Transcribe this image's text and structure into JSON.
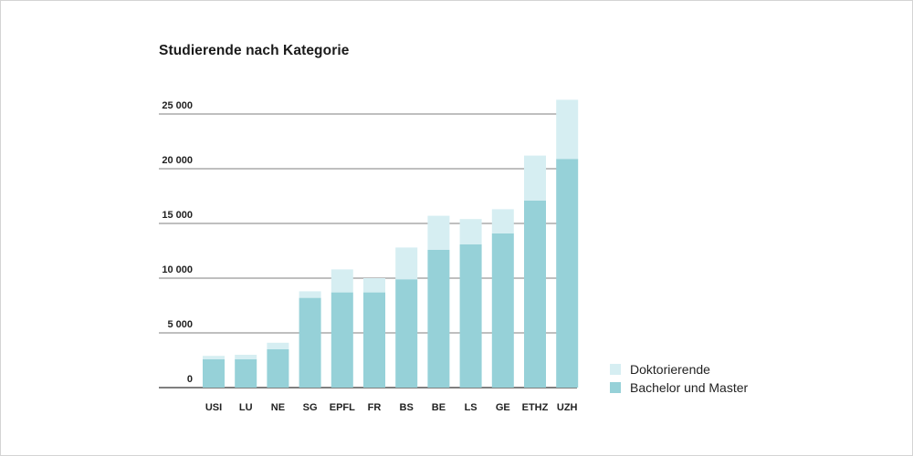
{
  "chart_data": {
    "type": "bar",
    "stacked": true,
    "title": "Studierende nach Kategorie",
    "categories": [
      "USI",
      "LU",
      "NE",
      "SG",
      "EPFL",
      "FR",
      "BS",
      "BE",
      "LS",
      "GE",
      "ETHZ",
      "UZH"
    ],
    "series": [
      {
        "name": "Bachelor und Master",
        "color": "#96d1d8",
        "values": [
          2600,
          2600,
          3500,
          8200,
          8700,
          8700,
          9900,
          12600,
          13100,
          14100,
          17100,
          20900
        ]
      },
      {
        "name": "Doktorierende",
        "color": "#d6eef2",
        "values": [
          300,
          400,
          600,
          600,
          2100,
          1300,
          2900,
          3100,
          2300,
          2200,
          4100,
          5400
        ]
      }
    ],
    "y_ticks": [
      "0",
      "5 000",
      "10 000",
      "15 000",
      "20 000",
      "25 000"
    ],
    "ylim": [
      0,
      25000
    ],
    "grid": true,
    "legend_position": "bottom-right",
    "legend": [
      {
        "label": "Doktorierende",
        "color": "#d6eef2"
      },
      {
        "label": "Bachelor und Master",
        "color": "#96d1d8"
      }
    ]
  }
}
